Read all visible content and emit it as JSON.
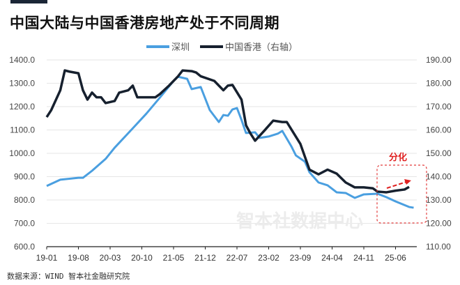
{
  "title": "中国大陆与中国香港房地产处于不同周期",
  "source": "数据来源：WIND 智本社金融研究院",
  "watermark": "智本社数据中心",
  "annotation": "分化",
  "chart_data": {
    "type": "line",
    "title": "中国大陆与中国香港房地产处于不同周期",
    "legend_position": "top",
    "grid": "horizontal",
    "x_ticks": [
      "19-01",
      "19-08",
      "20-03",
      "20-10",
      "21-05",
      "21-12",
      "22-07",
      "23-02",
      "23-09",
      "24-04",
      "24-11",
      "25-06"
    ],
    "y_left": {
      "ylim": [
        600,
        1400
      ],
      "ticks": [
        "600.0",
        "700.0",
        "800.0",
        "900.0",
        "1000.0",
        "1100.0",
        "1200.0",
        "1300.0",
        "1400.0"
      ]
    },
    "y_right": {
      "ylim": [
        110,
        190
      ],
      "ticks": [
        "110.00",
        "120.00",
        "130.00",
        "140.00",
        "150.00",
        "160.00",
        "170.00",
        "180.00",
        "190.00"
      ]
    },
    "series": [
      {
        "name": "深圳",
        "axis": "left",
        "color": "#4a9fe0",
        "points": [
          [
            "19-01",
            860
          ],
          [
            "19-04",
            887
          ],
          [
            "19-08",
            895
          ],
          [
            "19-09",
            895
          ],
          [
            "19-11",
            925
          ],
          [
            "20-02",
            976
          ],
          [
            "20-04",
            1024
          ],
          [
            "20-08",
            1107
          ],
          [
            "20-11",
            1170
          ],
          [
            "21-02",
            1239
          ],
          [
            "21-05",
            1310
          ],
          [
            "21-06",
            1328
          ],
          [
            "21-08",
            1319
          ],
          [
            "21-09",
            1275
          ],
          [
            "21-11",
            1284
          ],
          [
            "22-01",
            1185
          ],
          [
            "22-03",
            1134
          ],
          [
            "22-04",
            1164
          ],
          [
            "22-05",
            1161
          ],
          [
            "22-06",
            1188
          ],
          [
            "22-07",
            1194
          ],
          [
            "22-08",
            1143
          ],
          [
            "22-09",
            1087
          ],
          [
            "22-11",
            1090
          ],
          [
            "22-12",
            1066
          ],
          [
            "23-02",
            1072
          ],
          [
            "23-04",
            1084
          ],
          [
            "23-05",
            1096
          ],
          [
            "23-07",
            1030
          ],
          [
            "23-08",
            991
          ],
          [
            "23-10",
            964
          ],
          [
            "23-11",
            919
          ],
          [
            "24-01",
            875
          ],
          [
            "24-03",
            863
          ],
          [
            "24-05",
            833
          ],
          [
            "24-07",
            830
          ],
          [
            "24-09",
            809
          ],
          [
            "24-11",
            824
          ],
          [
            "25-02",
            827
          ],
          [
            "25-04",
            812
          ],
          [
            "25-06",
            794
          ],
          [
            "25-09",
            770
          ],
          [
            "25-10",
            767
          ]
        ]
      },
      {
        "name": "中国香港（右轴）",
        "axis": "right",
        "color": "#16202e",
        "points": [
          [
            "19-01",
            165.5
          ],
          [
            "19-02",
            168.5
          ],
          [
            "19-04",
            177
          ],
          [
            "19-05",
            185.5
          ],
          [
            "19-06",
            185
          ],
          [
            "19-08",
            184.3
          ],
          [
            "19-09",
            177
          ],
          [
            "19-10",
            173
          ],
          [
            "19-11",
            176
          ],
          [
            "19-12",
            174
          ],
          [
            "20-01",
            174
          ],
          [
            "20-02",
            171.5
          ],
          [
            "20-04",
            172.4
          ],
          [
            "20-05",
            176
          ],
          [
            "20-07",
            177
          ],
          [
            "20-08",
            179
          ],
          [
            "20-09",
            174
          ],
          [
            "20-11",
            174
          ],
          [
            "21-01",
            174
          ],
          [
            "21-02",
            175.4
          ],
          [
            "21-04",
            179
          ],
          [
            "21-06",
            183
          ],
          [
            "21-07",
            185.5
          ],
          [
            "21-09",
            185.2
          ],
          [
            "21-10",
            184.6
          ],
          [
            "21-11",
            183
          ],
          [
            "22-02",
            181
          ],
          [
            "22-04",
            177
          ],
          [
            "22-05",
            179
          ],
          [
            "22-06",
            179.3
          ],
          [
            "22-08",
            173
          ],
          [
            "22-09",
            162
          ],
          [
            "22-10",
            158.4
          ],
          [
            "22-11",
            155.4
          ],
          [
            "23-01",
            159.6
          ],
          [
            "23-03",
            164
          ],
          [
            "23-05",
            163.4
          ],
          [
            "23-06",
            163.4
          ],
          [
            "23-09",
            154
          ],
          [
            "23-11",
            143
          ],
          [
            "24-01",
            141
          ],
          [
            "24-03",
            143
          ],
          [
            "24-05",
            141.3
          ],
          [
            "24-07",
            137.5
          ],
          [
            "24-09",
            135.4
          ],
          [
            "24-11",
            135.4
          ],
          [
            "25-01",
            135
          ],
          [
            "25-02",
            133.6
          ],
          [
            "25-04",
            133.3
          ],
          [
            "25-06",
            134
          ],
          [
            "25-08",
            134.5
          ],
          [
            "25-09",
            135.6
          ]
        ]
      }
    ]
  }
}
